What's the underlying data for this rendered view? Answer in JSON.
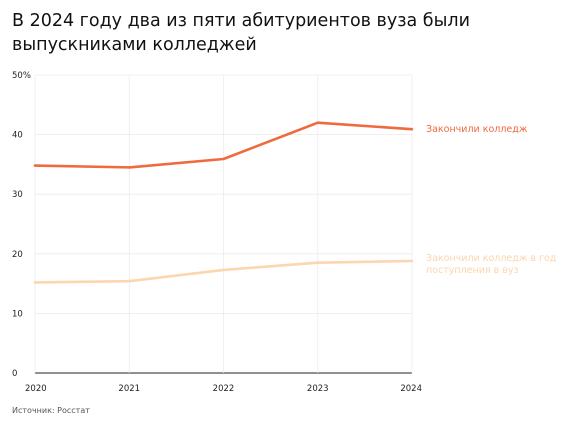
{
  "title": "В 2024 году два из пяти абитуриентов вуза были выпускниками колледжей",
  "source": "Источник: Росстат",
  "chart_data": {
    "type": "line",
    "title": "В 2024 году два из пяти абитуриентов вуза были выпускниками колледжей",
    "xlabel": "",
    "ylabel": "",
    "x": [
      "2020",
      "2021",
      "2022",
      "2023",
      "2024"
    ],
    "ylim": [
      0,
      50
    ],
    "yticks": [
      {
        "value": 0,
        "label": "0"
      },
      {
        "value": 10,
        "label": "10"
      },
      {
        "value": 20,
        "label": "20"
      },
      {
        "value": 30,
        "label": "30"
      },
      {
        "value": 40,
        "label": "40"
      },
      {
        "value": 50,
        "label": "50%"
      }
    ],
    "grid": true,
    "legend": "right, labels at line ends",
    "series": [
      {
        "name": "Закончили колледж",
        "color": "#f06a3f",
        "values": [
          34.8,
          34.5,
          35.9,
          42.0,
          40.9
        ]
      },
      {
        "name": "Закончили колледж в год поступления в вуз",
        "color": "#fbd6ae",
        "values": [
          15.2,
          15.4,
          17.3,
          18.5,
          18.8
        ]
      }
    ]
  }
}
